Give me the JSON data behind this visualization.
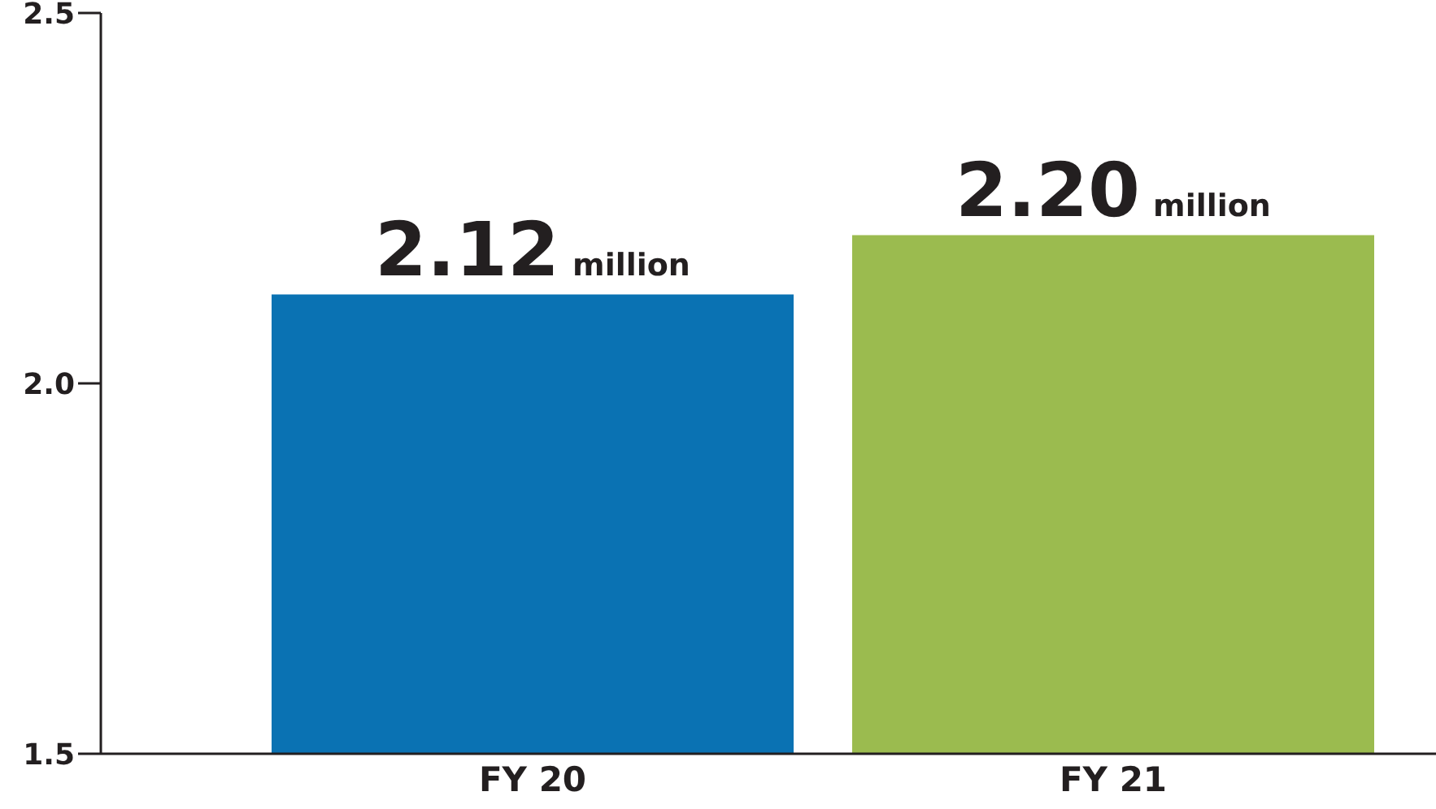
{
  "chart_data": {
    "type": "bar",
    "categories": [
      "FY 20",
      "FY 21"
    ],
    "values": [
      2.12,
      2.2
    ],
    "colors": [
      "#0a72b3",
      "#9bbb4f"
    ],
    "ylim": [
      1.5,
      2.5
    ],
    "yticks": [
      1.5,
      {
        "value": 2,
        "label": "2.0"
      },
      2.5
    ],
    "value_labels": [
      "2.12 million",
      "2.20 million"
    ]
  }
}
